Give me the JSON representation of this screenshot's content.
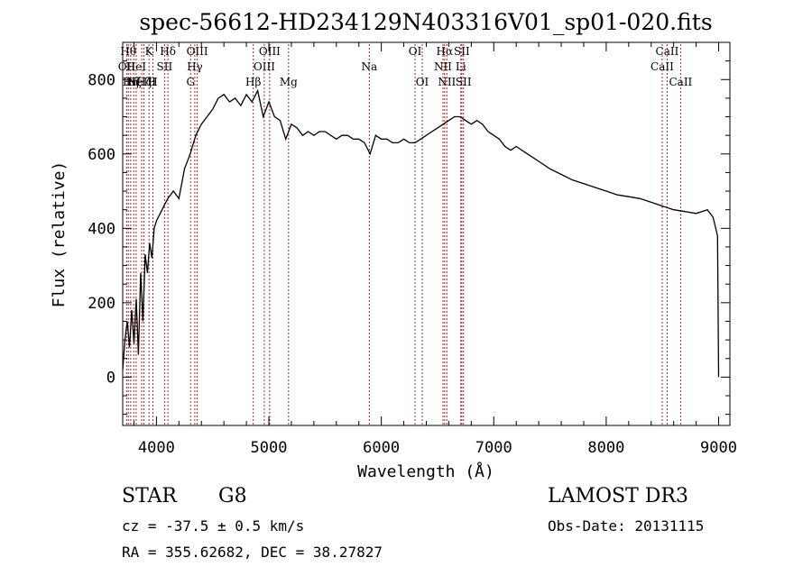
{
  "chart_data": {
    "type": "line",
    "title": "spec-56612-HD234129N403316V01_sp01-020.fits",
    "xlabel": "Wavelength (Å)",
    "ylabel": "Flux (relative)",
    "xlim": [
      3700,
      9100
    ],
    "ylim": [
      -130,
      900
    ],
    "x_ticks": [
      4000,
      5000,
      6000,
      7000,
      8000,
      9000
    ],
    "y_ticks": [
      0,
      200,
      400,
      600,
      800
    ],
    "grid": false,
    "line_color": "#000000",
    "marker_color": "#b22222",
    "series": [
      {
        "x": [
          3700,
          3720,
          3740,
          3760,
          3780,
          3800,
          3820,
          3840,
          3860,
          3880,
          3900,
          3920,
          3940,
          3960,
          3980,
          4000,
          4050,
          4100,
          4150,
          4200,
          4250,
          4300,
          4350,
          4400,
          4450,
          4500,
          4550,
          4600,
          4650,
          4700,
          4750,
          4800,
          4850,
          4900,
          4950,
          5000,
          5050,
          5100,
          5150,
          5200,
          5250,
          5300,
          5350,
          5400,
          5450,
          5500,
          5550,
          5600,
          5650,
          5700,
          5750,
          5800,
          5850,
          5900,
          5950,
          6000,
          6050,
          6100,
          6150,
          6200,
          6250,
          6300,
          6350,
          6400,
          6450,
          6500,
          6550,
          6600,
          6650,
          6700,
          6750,
          6800,
          6850,
          6900,
          6950,
          7000,
          7050,
          7100,
          7150,
          7200,
          7300,
          7400,
          7500,
          7600,
          7700,
          7800,
          7900,
          8000,
          8100,
          8200,
          8300,
          8400,
          8500,
          8600,
          8700,
          8800,
          8900,
          8950,
          8990,
          9000
        ],
        "values": [
          20,
          100,
          150,
          80,
          180,
          90,
          210,
          60,
          280,
          150,
          330,
          280,
          360,
          320,
          400,
          420,
          450,
          480,
          500,
          480,
          560,
          600,
          650,
          680,
          700,
          720,
          750,
          760,
          740,
          750,
          730,
          760,
          740,
          770,
          700,
          740,
          700,
          690,
          640,
          680,
          670,
          650,
          660,
          650,
          660,
          660,
          650,
          640,
          650,
          650,
          640,
          640,
          630,
          600,
          650,
          640,
          640,
          630,
          630,
          640,
          630,
          630,
          640,
          650,
          660,
          670,
          680,
          690,
          700,
          700,
          690,
          680,
          690,
          680,
          660,
          650,
          640,
          620,
          610,
          620,
          600,
          580,
          560,
          545,
          530,
          520,
          510,
          500,
          490,
          485,
          480,
          470,
          460,
          450,
          445,
          440,
          450,
          430,
          380,
          0
        ]
      }
    ],
    "lines": [
      {
        "wl": 3735,
        "label": "OII",
        "row": 1
      },
      {
        "wl": 3750,
        "label": "Hθ",
        "row": 0
      },
      {
        "wl": 3771,
        "label": "Hη",
        "row": 2
      },
      {
        "wl": 3798,
        "label": "Hζ",
        "row": 2
      },
      {
        "wl": 3820,
        "label": "HeI",
        "row": 1
      },
      {
        "wl": 3869,
        "label": "NeIII",
        "row": 2
      },
      {
        "wl": 3889,
        "label": "Hζ",
        "row": 2
      },
      {
        "wl": 3934,
        "label": "K",
        "row": 0
      },
      {
        "wl": 3969,
        "label": "H",
        "row": 2
      },
      {
        "wl": 4072,
        "label": "SII",
        "row": 1
      },
      {
        "wl": 4102,
        "label": "Hδ",
        "row": 0
      },
      {
        "wl": 4304,
        "label": "G",
        "row": 2
      },
      {
        "wl": 4341,
        "label": "Hγ",
        "row": 1
      },
      {
        "wl": 4363,
        "label": "OIII",
        "row": 0
      },
      {
        "wl": 4861,
        "label": "Hβ",
        "row": 2
      },
      {
        "wl": 4959,
        "label": "OIII",
        "row": 1
      },
      {
        "wl": 5007,
        "label": "OIII",
        "row": 0
      },
      {
        "wl": 5175,
        "label": "Mg",
        "row": 2
      },
      {
        "wl": 5893,
        "label": "Na",
        "row": 1
      },
      {
        "wl": 6300,
        "label": "OI",
        "row": 0
      },
      {
        "wl": 6364,
        "label": "OI",
        "row": 2
      },
      {
        "wl": 6548,
        "label": "NII",
        "row": 1
      },
      {
        "wl": 6563,
        "label": "Hα",
        "row": 0
      },
      {
        "wl": 6583,
        "label": "NII",
        "row": 2
      },
      {
        "wl": 6707,
        "label": "Li",
        "row": 1
      },
      {
        "wl": 6716,
        "label": "SII",
        "row": 0
      },
      {
        "wl": 6731,
        "label": "SII",
        "row": 2
      },
      {
        "wl": 8498,
        "label": "CaII",
        "row": 1
      },
      {
        "wl": 8542,
        "label": "CaII",
        "row": 0
      },
      {
        "wl": 8662,
        "label": "CaII",
        "row": 2
      }
    ]
  },
  "info": {
    "class": "STAR",
    "subclass": "G8",
    "survey": "LAMOST DR3",
    "cz": "cz = -37.5 ± 0.5 km/s",
    "obs_date": "Obs-Date: 20131115",
    "coords": "RA = 355.62682, DEC =  38.27827"
  }
}
